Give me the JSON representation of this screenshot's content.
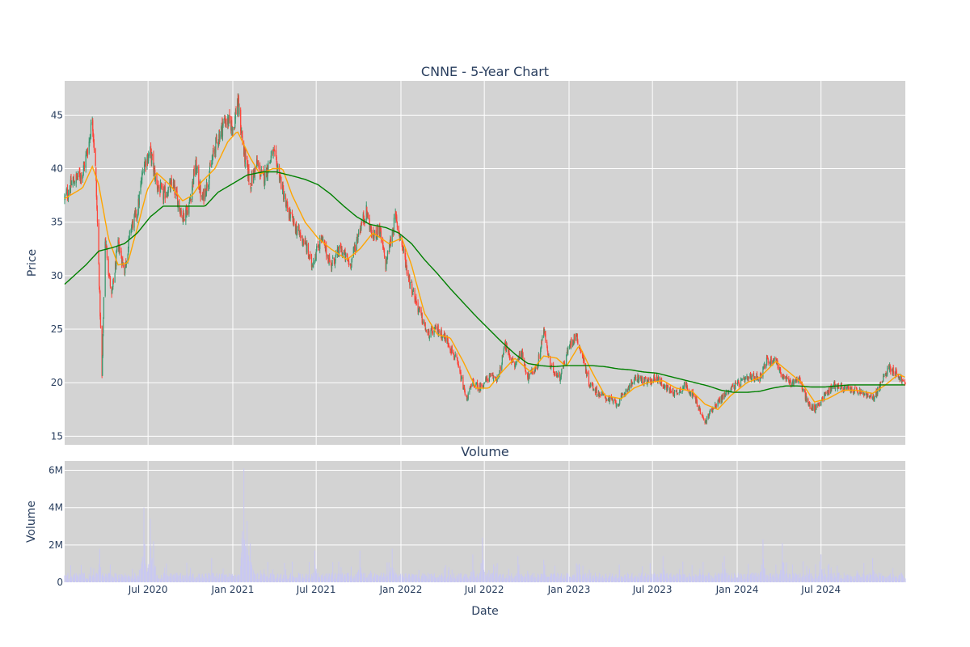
{
  "chart_data": [
    {
      "type": "candlestick",
      "title": "CNNE - 5-Year Chart",
      "ylabel": "Price",
      "ylim": [
        14.2,
        48.2
      ],
      "yticks": [
        15,
        20,
        25,
        30,
        35,
        40,
        45
      ],
      "xlim": [
        "2020-01-02",
        "2024-12-31"
      ],
      "xticks": [
        {
          "date": "2020-07-01",
          "label": "Jul 2020"
        },
        {
          "date": "2021-01-01",
          "label": "Jan 2021"
        },
        {
          "date": "2021-07-01",
          "label": "Jul 2021"
        },
        {
          "date": "2022-01-01",
          "label": "Jan 2022"
        },
        {
          "date": "2022-07-01",
          "label": "Jul 2022"
        },
        {
          "date": "2023-01-01",
          "label": "Jan 2023"
        },
        {
          "date": "2023-07-01",
          "label": "Jul 2023"
        },
        {
          "date": "2024-01-01",
          "label": "Jan 2024"
        },
        {
          "date": "2024-07-01",
          "label": "Jul 2024"
        }
      ],
      "grid": true,
      "background": "#d3d3d3",
      "colors": {
        "up": "#3d9970",
        "down": "#ff4136",
        "ma_short": "#ffa500",
        "ma_long": "#008000"
      },
      "price_path": [
        [
          "2020-01-02",
          37.2
        ],
        [
          "2020-01-20",
          38.8
        ],
        [
          "2020-02-10",
          39.6
        ],
        [
          "2020-02-24",
          42.5
        ],
        [
          "2020-03-02",
          44.8
        ],
        [
          "2020-03-09",
          40.0
        ],
        [
          "2020-03-16",
          31.0
        ],
        [
          "2020-03-23",
          20.5
        ],
        [
          "2020-03-30",
          33.5
        ],
        [
          "2020-04-13",
          28.0
        ],
        [
          "2020-04-27",
          33.0
        ],
        [
          "2020-05-11",
          30.5
        ],
        [
          "2020-05-25",
          34.5
        ],
        [
          "2020-06-08",
          36.0
        ],
        [
          "2020-06-22",
          40.5
        ],
        [
          "2020-07-06",
          41.5
        ],
        [
          "2020-07-20",
          38.5
        ],
        [
          "2020-08-03",
          37.5
        ],
        [
          "2020-08-24",
          38.5
        ],
        [
          "2020-09-14",
          35.5
        ],
        [
          "2020-09-28",
          36.5
        ],
        [
          "2020-10-12",
          40.5
        ],
        [
          "2020-10-26",
          37.0
        ],
        [
          "2020-11-09",
          39.0
        ],
        [
          "2020-11-23",
          42.0
        ],
        [
          "2020-12-14",
          44.5
        ],
        [
          "2021-01-04",
          44.0
        ],
        [
          "2021-01-11",
          46.5
        ],
        [
          "2021-01-25",
          41.5
        ],
        [
          "2021-02-08",
          38.5
        ],
        [
          "2021-02-22",
          40.5
        ],
        [
          "2021-03-08",
          39.0
        ],
        [
          "2021-03-29",
          41.5
        ],
        [
          "2021-04-12",
          39.5
        ],
        [
          "2021-04-26",
          36.5
        ],
        [
          "2021-05-17",
          34.5
        ],
        [
          "2021-06-07",
          33.0
        ],
        [
          "2021-06-21",
          31.0
        ],
        [
          "2021-07-12",
          33.5
        ],
        [
          "2021-08-02",
          31.0
        ],
        [
          "2021-08-23",
          32.5
        ],
        [
          "2021-09-13",
          31.0
        ],
        [
          "2021-10-04",
          34.5
        ],
        [
          "2021-10-18",
          36.0
        ],
        [
          "2021-11-01",
          33.5
        ],
        [
          "2021-11-15",
          34.5
        ],
        [
          "2021-11-29",
          31.0
        ],
        [
          "2021-12-20",
          35.5
        ],
        [
          "2022-01-03",
          33.0
        ],
        [
          "2022-01-17",
          30.0
        ],
        [
          "2022-02-07",
          27.0
        ],
        [
          "2022-02-28",
          24.5
        ],
        [
          "2022-03-21",
          25.0
        ],
        [
          "2022-04-11",
          24.0
        ],
        [
          "2022-05-02",
          22.0
        ],
        [
          "2022-05-23",
          18.5
        ],
        [
          "2022-06-06",
          20.0
        ],
        [
          "2022-06-20",
          19.5
        ],
        [
          "2022-07-11",
          20.5
        ],
        [
          "2022-08-01",
          20.5
        ],
        [
          "2022-08-15",
          23.5
        ],
        [
          "2022-09-05",
          21.5
        ],
        [
          "2022-09-19",
          23.0
        ],
        [
          "2022-10-03",
          20.5
        ],
        [
          "2022-10-24",
          21.5
        ],
        [
          "2022-11-07",
          25.0
        ],
        [
          "2022-11-21",
          21.5
        ],
        [
          "2022-12-12",
          20.5
        ],
        [
          "2023-01-02",
          23.5
        ],
        [
          "2023-01-16",
          24.5
        ],
        [
          "2023-01-30",
          22.5
        ],
        [
          "2023-02-13",
          20.0
        ],
        [
          "2023-03-06",
          19.0
        ],
        [
          "2023-03-27",
          18.5
        ],
        [
          "2023-04-17",
          18.0
        ],
        [
          "2023-05-08",
          19.5
        ],
        [
          "2023-05-29",
          20.5
        ],
        [
          "2023-06-19",
          20.0
        ],
        [
          "2023-07-10",
          20.5
        ],
        [
          "2023-07-31",
          19.5
        ],
        [
          "2023-08-21",
          19.0
        ],
        [
          "2023-09-11",
          19.8
        ],
        [
          "2023-10-02",
          18.5
        ],
        [
          "2023-10-23",
          16.2
        ],
        [
          "2023-11-06",
          17.5
        ],
        [
          "2023-11-27",
          18.5
        ],
        [
          "2023-12-18",
          19.5
        ],
        [
          "2024-01-08",
          20.0
        ],
        [
          "2024-01-29",
          20.5
        ],
        [
          "2024-02-19",
          20.5
        ],
        [
          "2024-03-04",
          22.0
        ],
        [
          "2024-03-25",
          22.2
        ],
        [
          "2024-04-08",
          20.5
        ],
        [
          "2024-04-29",
          20.0
        ],
        [
          "2024-05-13",
          20.5
        ],
        [
          "2024-06-03",
          18.0
        ],
        [
          "2024-06-17",
          17.5
        ],
        [
          "2024-07-08",
          18.8
        ],
        [
          "2024-07-29",
          19.8
        ],
        [
          "2024-08-19",
          19.5
        ],
        [
          "2024-09-09",
          19.3
        ],
        [
          "2024-09-30",
          19.0
        ],
        [
          "2024-10-21",
          18.5
        ],
        [
          "2024-11-04",
          19.5
        ],
        [
          "2024-11-25",
          21.5
        ],
        [
          "2024-12-09",
          21.0
        ],
        [
          "2024-12-31",
          19.8
        ]
      ],
      "ma_short_path": [
        [
          "2020-01-02",
          37.2
        ],
        [
          "2020-02-10",
          38.2
        ],
        [
          "2020-03-02",
          40.2
        ],
        [
          "2020-03-16",
          38.5
        ],
        [
          "2020-04-06",
          33.5
        ],
        [
          "2020-04-27",
          31.0
        ],
        [
          "2020-05-18",
          31.2
        ],
        [
          "2020-06-08",
          34.5
        ],
        [
          "2020-06-29",
          38.0
        ],
        [
          "2020-07-20",
          39.6
        ],
        [
          "2020-08-17",
          38.5
        ],
        [
          "2020-09-14",
          37.0
        ],
        [
          "2020-10-05",
          37.5
        ],
        [
          "2020-10-26",
          38.8
        ],
        [
          "2020-11-23",
          40.0
        ],
        [
          "2020-12-21",
          42.5
        ],
        [
          "2021-01-11",
          43.5
        ],
        [
          "2021-02-08",
          41.0
        ],
        [
          "2021-03-01",
          39.5
        ],
        [
          "2021-03-29",
          40.0
        ],
        [
          "2021-04-19",
          40.0
        ],
        [
          "2021-05-10",
          37.5
        ],
        [
          "2021-06-07",
          35.0
        ],
        [
          "2021-07-05",
          33.5
        ],
        [
          "2021-08-02",
          32.5
        ],
        [
          "2021-09-06",
          31.5
        ],
        [
          "2021-10-04",
          32.5
        ],
        [
          "2021-11-01",
          34.0
        ],
        [
          "2021-12-06",
          33.0
        ],
        [
          "2022-01-03",
          33.5
        ],
        [
          "2022-01-24",
          31.0
        ],
        [
          "2022-02-21",
          26.5
        ],
        [
          "2022-03-21",
          24.5
        ],
        [
          "2022-04-18",
          24.2
        ],
        [
          "2022-05-16",
          22.0
        ],
        [
          "2022-06-13",
          19.5
        ],
        [
          "2022-07-11",
          19.5
        ],
        [
          "2022-08-08",
          21.0
        ],
        [
          "2022-09-05",
          22.3
        ],
        [
          "2022-10-10",
          21.0
        ],
        [
          "2022-11-07",
          22.5
        ],
        [
          "2022-12-05",
          22.3
        ],
        [
          "2022-12-26",
          21.5
        ],
        [
          "2023-01-23",
          23.5
        ],
        [
          "2023-02-20",
          21.0
        ],
        [
          "2023-03-20",
          18.8
        ],
        [
          "2023-04-24",
          18.5
        ],
        [
          "2023-05-22",
          19.5
        ],
        [
          "2023-06-19",
          20.0
        ],
        [
          "2023-07-24",
          20.2
        ],
        [
          "2023-08-21",
          19.5
        ],
        [
          "2023-09-25",
          19.2
        ],
        [
          "2023-10-23",
          18.0
        ],
        [
          "2023-11-20",
          17.5
        ],
        [
          "2023-12-18",
          18.8
        ],
        [
          "2024-01-22",
          20.0
        ],
        [
          "2024-02-19",
          20.5
        ],
        [
          "2024-03-25",
          22.0
        ],
        [
          "2024-04-22",
          21.0
        ],
        [
          "2024-05-20",
          20.0
        ],
        [
          "2024-06-17",
          18.2
        ],
        [
          "2024-07-15",
          18.5
        ],
        [
          "2024-08-19",
          19.3
        ],
        [
          "2024-09-16",
          19.3
        ],
        [
          "2024-10-21",
          19.0
        ],
        [
          "2024-11-18",
          19.8
        ],
        [
          "2024-12-16",
          20.8
        ],
        [
          "2024-12-31",
          20.5
        ]
      ],
      "ma_long_path": [
        [
          "2020-01-02",
          29.2
        ],
        [
          "2020-02-17",
          31.0
        ],
        [
          "2020-03-16",
          32.3
        ],
        [
          "2020-04-13",
          32.6
        ],
        [
          "2020-05-11",
          33.0
        ],
        [
          "2020-06-08",
          34.0
        ],
        [
          "2020-07-06",
          35.5
        ],
        [
          "2020-08-03",
          36.5
        ],
        [
          "2020-09-07",
          36.5
        ],
        [
          "2020-10-05",
          36.5
        ],
        [
          "2020-11-02",
          36.5
        ],
        [
          "2020-11-30",
          37.8
        ],
        [
          "2020-12-28",
          38.5
        ],
        [
          "2021-02-01",
          39.4
        ],
        [
          "2021-03-08",
          39.7
        ],
        [
          "2021-04-05",
          39.7
        ],
        [
          "2021-05-03",
          39.4
        ],
        [
          "2021-06-07",
          39.0
        ],
        [
          "2021-07-05",
          38.5
        ],
        [
          "2021-08-02",
          37.6
        ],
        [
          "2021-08-30",
          36.5
        ],
        [
          "2021-09-27",
          35.5
        ],
        [
          "2021-10-25",
          34.8
        ],
        [
          "2021-11-29",
          34.5
        ],
        [
          "2021-12-27",
          34.0
        ],
        [
          "2022-01-24",
          33.0
        ],
        [
          "2022-02-21",
          31.5
        ],
        [
          "2022-03-21",
          30.2
        ],
        [
          "2022-04-18",
          28.8
        ],
        [
          "2022-05-16",
          27.5
        ],
        [
          "2022-06-13",
          26.2
        ],
        [
          "2022-07-11",
          25.0
        ],
        [
          "2022-08-08",
          23.8
        ],
        [
          "2022-09-05",
          22.7
        ],
        [
          "2022-10-03",
          21.8
        ],
        [
          "2022-10-31",
          21.6
        ],
        [
          "2022-11-28",
          21.5
        ],
        [
          "2022-12-26",
          21.6
        ],
        [
          "2023-01-23",
          21.6
        ],
        [
          "2023-02-20",
          21.6
        ],
        [
          "2023-03-20",
          21.5
        ],
        [
          "2023-04-17",
          21.3
        ],
        [
          "2023-05-15",
          21.2
        ],
        [
          "2023-06-12",
          21.0
        ],
        [
          "2023-07-10",
          20.9
        ],
        [
          "2023-08-07",
          20.6
        ],
        [
          "2023-09-04",
          20.3
        ],
        [
          "2023-10-02",
          20.0
        ],
        [
          "2023-10-30",
          19.7
        ],
        [
          "2023-11-27",
          19.3
        ],
        [
          "2023-12-25",
          19.1
        ],
        [
          "2024-01-22",
          19.1
        ],
        [
          "2024-02-19",
          19.2
        ],
        [
          "2024-03-18",
          19.5
        ],
        [
          "2024-04-15",
          19.7
        ],
        [
          "2024-05-13",
          19.7
        ],
        [
          "2024-06-10",
          19.6
        ],
        [
          "2024-07-08",
          19.6
        ],
        [
          "2024-08-05",
          19.7
        ],
        [
          "2024-09-02",
          19.8
        ],
        [
          "2024-09-30",
          19.8
        ],
        [
          "2024-10-28",
          19.8
        ],
        [
          "2024-11-25",
          19.8
        ],
        [
          "2024-12-31",
          19.8
        ]
      ]
    },
    {
      "type": "bar",
      "title": "Volume",
      "xlabel": "Date",
      "ylabel": "Volume",
      "ylim": [
        0,
        6500000
      ],
      "yticks": [
        {
          "value": 0,
          "label": "0"
        },
        {
          "value": 2000000,
          "label": "2M"
        },
        {
          "value": 4000000,
          "label": "4M"
        },
        {
          "value": 6000000,
          "label": "6M"
        }
      ],
      "bar_color": "#c9c8f2",
      "background": "#d3d3d3",
      "grid": true,
      "typical_volume": 400000,
      "spikes": [
        [
          "2020-03-18",
          1800000
        ],
        [
          "2020-06-22",
          4000000
        ],
        [
          "2020-07-06",
          3400000
        ],
        [
          "2020-07-13",
          2200000
        ],
        [
          "2020-11-16",
          1300000
        ],
        [
          "2021-01-25",
          6100000
        ],
        [
          "2021-02-01",
          3300000
        ],
        [
          "2021-02-08",
          2100000
        ],
        [
          "2021-06-28",
          1700000
        ],
        [
          "2021-10-04",
          1700000
        ],
        [
          "2021-12-13",
          1800000
        ],
        [
          "2022-06-06",
          1500000
        ],
        [
          "2022-06-27",
          2400000
        ],
        [
          "2022-09-12",
          1400000
        ],
        [
          "2022-11-07",
          1200000
        ],
        [
          "2023-07-24",
          1400000
        ],
        [
          "2023-12-04",
          1400000
        ],
        [
          "2024-02-26",
          2300000
        ],
        [
          "2024-04-08",
          2100000
        ],
        [
          "2024-07-01",
          1500000
        ],
        [
          "2024-10-21",
          1300000
        ]
      ]
    }
  ]
}
